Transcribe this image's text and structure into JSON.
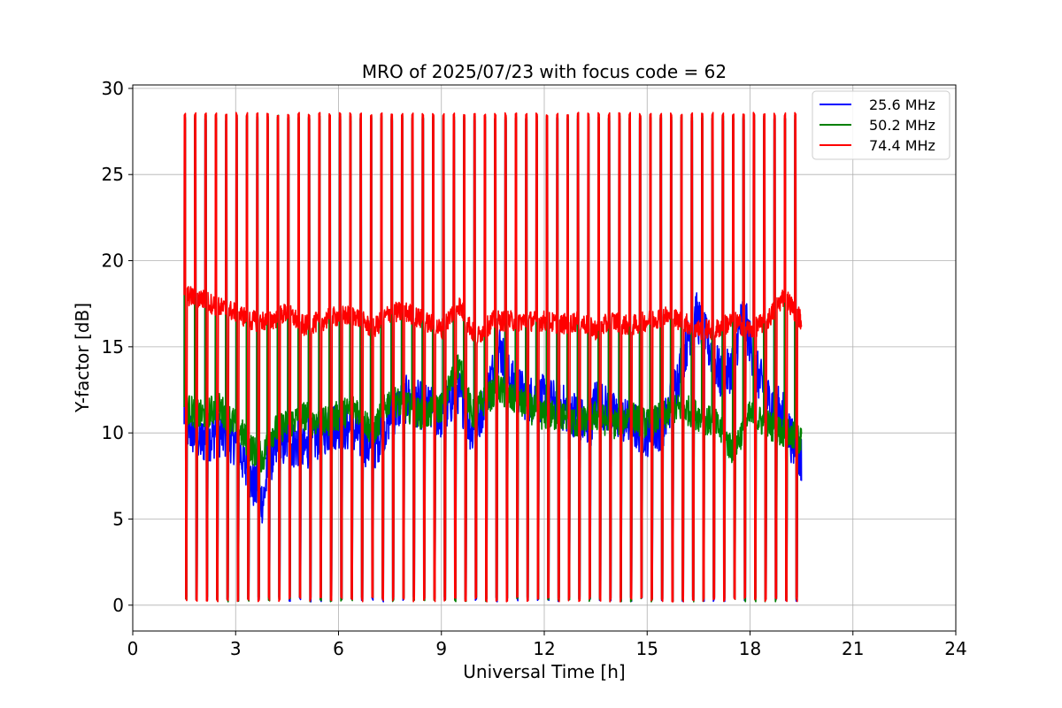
{
  "chart_data": {
    "type": "line",
    "title": "MRO of 2025/07/23 with focus code = 62",
    "xlabel": "Universal Time [h]",
    "ylabel": "Y-factor [dB]",
    "xlim": [
      0,
      24
    ],
    "ylim": [
      -1.5,
      30.2
    ],
    "xticks": [
      0,
      3,
      6,
      9,
      12,
      15,
      18,
      21,
      24
    ],
    "yticks": [
      0,
      5,
      10,
      15,
      20,
      25,
      30
    ],
    "grid": true,
    "legend_position": "top-right",
    "calibration_pulses": {
      "start_h": 1.5,
      "end_h": 19.3,
      "count": 60,
      "peak_y": 28.5,
      "floor_y": 0.2
    },
    "series": [
      {
        "name": "25.6 MHz",
        "color": "#0000ff",
        "x": [
          1.5,
          2.0,
          2.5,
          3.0,
          3.5,
          3.8,
          4.0,
          4.5,
          5.0,
          5.5,
          6.0,
          6.5,
          7.0,
          7.5,
          8.0,
          8.5,
          9.0,
          9.5,
          9.9,
          10.3,
          10.7,
          11.0,
          11.5,
          12.0,
          12.5,
          13.0,
          13.3,
          13.5,
          14.0,
          14.5,
          15.0,
          15.5,
          16.0,
          16.4,
          16.8,
          17.2,
          17.5,
          17.8,
          18.2,
          18.5,
          19.0,
          19.3,
          19.5
        ],
        "y": [
          10.5,
          9.5,
          10.0,
          9.5,
          7.0,
          6.0,
          8.5,
          9.5,
          9.0,
          10.0,
          10.5,
          10.0,
          9.0,
          11.0,
          12.0,
          11.5,
          11.0,
          12.5,
          10.0,
          12.0,
          15.0,
          13.0,
          12.0,
          12.0,
          11.5,
          11.0,
          10.0,
          12.0,
          11.0,
          10.5,
          10.0,
          10.5,
          14.0,
          17.0,
          15.0,
          13.0,
          14.0,
          17.0,
          13.5,
          12.0,
          11.0,
          9.0,
          8.5
        ]
      },
      {
        "name": "50.2 MHz",
        "color": "#008000",
        "x": [
          1.5,
          2.0,
          2.5,
          3.0,
          3.5,
          3.8,
          4.0,
          4.5,
          5.0,
          5.5,
          6.0,
          6.5,
          7.0,
          7.5,
          8.0,
          8.5,
          9.0,
          9.5,
          9.9,
          10.3,
          10.7,
          11.0,
          11.5,
          12.0,
          12.5,
          13.0,
          13.5,
          14.0,
          14.5,
          15.0,
          15.5,
          16.0,
          16.5,
          17.0,
          17.5,
          18.0,
          18.5,
          19.0,
          19.5
        ],
        "y": [
          11.5,
          11.0,
          11.5,
          10.5,
          9.0,
          8.5,
          10.0,
          10.5,
          11.0,
          10.5,
          11.0,
          11.5,
          10.0,
          12.0,
          11.5,
          11.0,
          11.5,
          14.0,
          11.0,
          12.0,
          12.5,
          12.0,
          11.5,
          11.0,
          11.0,
          10.5,
          11.0,
          10.5,
          11.0,
          10.5,
          11.0,
          11.5,
          11.0,
          10.5,
          9.0,
          11.0,
          10.5,
          10.0,
          9.5
        ]
      },
      {
        "name": "74.4 MHz",
        "color": "#ff0000",
        "x": [
          1.5,
          2.0,
          2.5,
          3.0,
          3.5,
          4.0,
          4.5,
          5.0,
          5.5,
          6.0,
          6.5,
          7.0,
          7.5,
          8.0,
          8.5,
          9.0,
          9.5,
          10.0,
          10.5,
          11.0,
          11.5,
          12.0,
          12.5,
          13.0,
          13.5,
          14.0,
          14.5,
          15.0,
          15.5,
          16.0,
          16.5,
          17.0,
          17.5,
          18.0,
          18.5,
          19.0,
          19.5
        ],
        "y": [
          18.0,
          17.8,
          17.3,
          17.0,
          16.5,
          16.5,
          17.0,
          16.2,
          16.5,
          16.8,
          16.8,
          16.0,
          17.0,
          17.0,
          16.5,
          16.0,
          17.5,
          15.5,
          16.5,
          16.5,
          16.5,
          16.5,
          16.3,
          16.5,
          16.0,
          16.5,
          16.2,
          16.5,
          16.8,
          16.5,
          16.0,
          16.0,
          16.5,
          16.0,
          16.5,
          18.0,
          16.5
        ]
      }
    ]
  }
}
